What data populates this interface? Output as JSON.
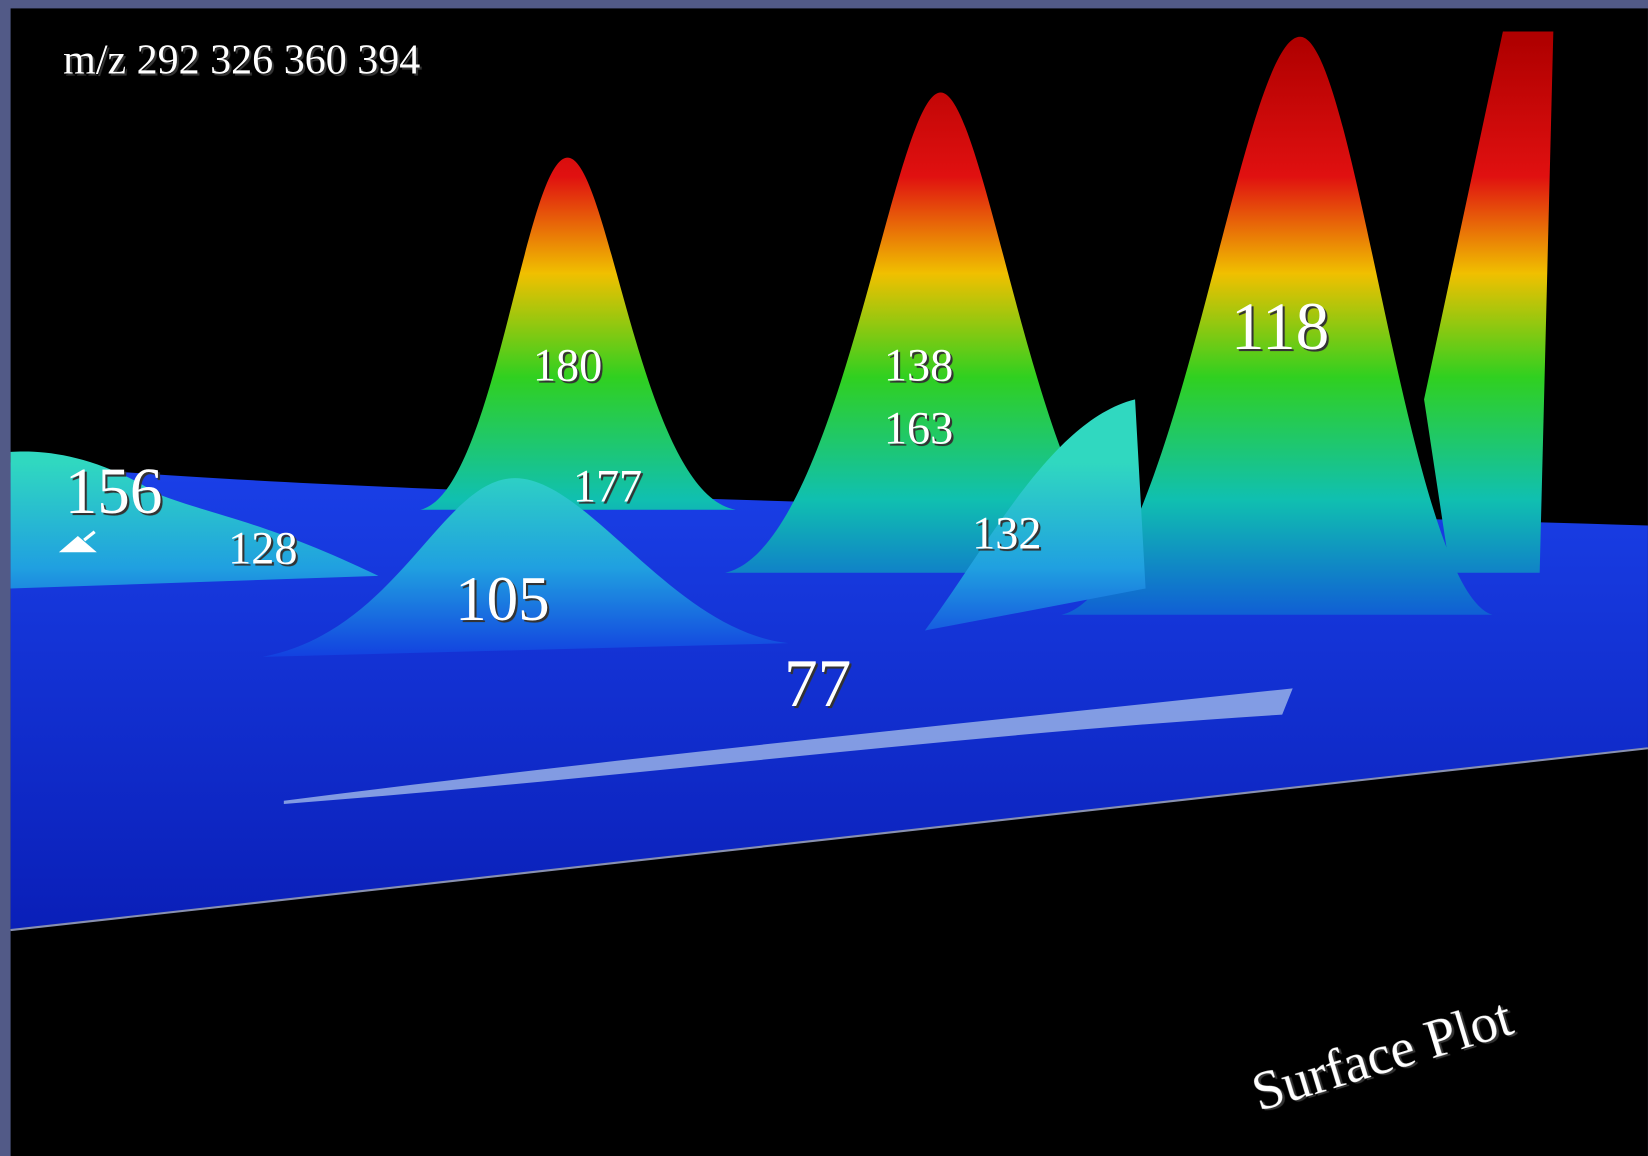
{
  "header": {
    "masses": "m/z 292 326 360 394"
  },
  "peak_labels": [
    "156",
    "128",
    "105",
    "180",
    "177",
    "138",
    "163",
    "132",
    "118",
    "77"
  ],
  "caption": "Surface Plot"
}
